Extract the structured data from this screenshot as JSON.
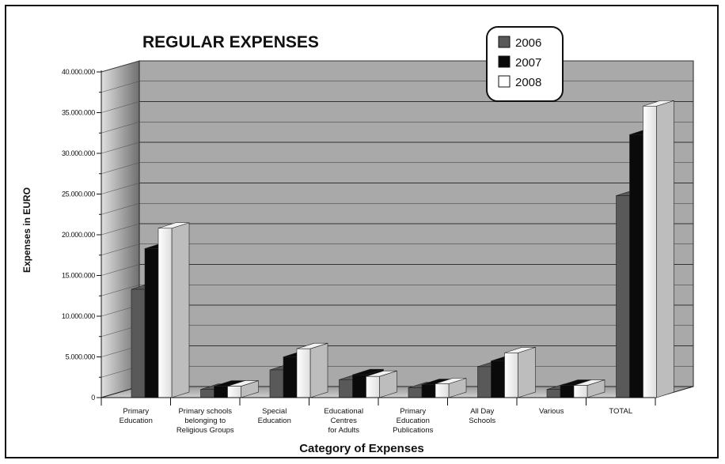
{
  "chart_data": {
    "type": "bar",
    "title": "REGULAR EXPENSES",
    "xlabel": "Category of Expenses",
    "ylabel": "Expenses in EURO",
    "ylim": [
      0,
      40000000
    ],
    "yticks": [
      0,
      5000000,
      10000000,
      15000000,
      20000000,
      25000000,
      30000000,
      35000000,
      40000000
    ],
    "ytick_labels": [
      "0",
      "5.000.000",
      "10.000.000",
      "15.000.000",
      "20.000.000",
      "25.000.000",
      "30.000.000",
      "35.000.000",
      "40.000.000"
    ],
    "categories": [
      [
        "Primary",
        "Education"
      ],
      [
        "Primary schools",
        "belonging to",
        "Religious Groups"
      ],
      [
        "Special",
        "Education"
      ],
      [
        "Educational",
        "Centres",
        "for Adults"
      ],
      [
        "Primary",
        "Education",
        "Publications"
      ],
      [
        "All Day",
        "Schools"
      ],
      [
        "Various"
      ],
      [
        "TOTAL"
      ]
    ],
    "series": [
      {
        "name": "2006",
        "color": "#595959",
        "values": [
          13300000,
          1000000,
          3400000,
          2200000,
          1200000,
          3800000,
          1000000,
          24800000
        ]
      },
      {
        "name": "2007",
        "color": "#0a0a0a",
        "values": [
          18300000,
          1400000,
          5000000,
          2800000,
          1600000,
          4500000,
          1500000,
          32300000
        ]
      },
      {
        "name": "2008",
        "color": "#ffffff",
        "values": [
          20800000,
          1400000,
          6000000,
          2600000,
          1700000,
          5500000,
          1500000,
          35800000
        ]
      }
    ],
    "grid": true,
    "legend": "top-right",
    "three_d": true
  }
}
